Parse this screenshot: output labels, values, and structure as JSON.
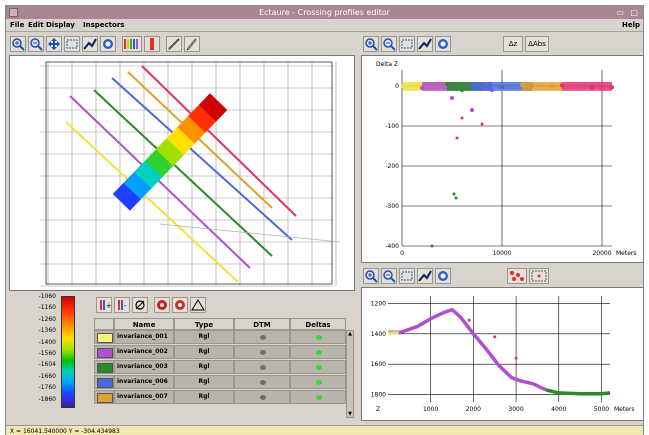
{
  "window": {
    "title": "Ectaure - Crossing profiles editor",
    "controls": "▭ □"
  },
  "menu": {
    "file": "File",
    "edit": "Edit",
    "display": "Display",
    "inspectors": "Inspectors",
    "help": "Help"
  },
  "toolbars": {
    "map": [
      "zoom-in-icon",
      "zoom-out-icon",
      "pan-icon",
      "select-rect-icon",
      "rubber-icon",
      "hand-icon",
      "profiles-icon",
      "bar-icon",
      "edit-pen-icon",
      "pencil-icon"
    ],
    "delta_labels": {
      "dz": "Δz",
      "dabs": "ΔAbs"
    },
    "profile": [
      "zoom-in-icon",
      "zoom-out-icon",
      "select-rect-icon",
      "rubber-icon",
      "hand-icon",
      "points-icon",
      "dash-rect-icon"
    ],
    "table": [
      "add-profile-icon",
      "remove-profile-icon",
      "reset-icon",
      "gear-red-icon",
      "gear-red2-icon",
      "triangle-icon"
    ]
  },
  "colorbar": {
    "labels": [
      "-1060",
      "-1160",
      "-1260",
      "-1360",
      "-1400",
      "-1560",
      "-1604",
      "-1660",
      "-1760",
      "-1860"
    ],
    "colors": [
      "#d00000",
      "#ff9000",
      "#ffe000",
      "#00c000",
      "#00d0c0",
      "#2040ff"
    ]
  },
  "table": {
    "headers": [
      "Name",
      "Type",
      "DTM",
      "Deltas"
    ],
    "rows": [
      {
        "name": "invariance_001",
        "type": "Rgl",
        "color": "#f7f07a"
      },
      {
        "name": "invariance_002",
        "type": "Rgl",
        "color": "#b050d0"
      },
      {
        "name": "invariance_003",
        "type": "Rgl",
        "color": "#2a8a2a"
      },
      {
        "name": "invariance_006",
        "type": "Rgl",
        "color": "#4a6ad8"
      },
      {
        "name": "invariance_007",
        "type": "Rgl",
        "color": "#e0a030"
      }
    ],
    "dtm_color": "#707070",
    "delta_color": "#40d040"
  },
  "delta_chart": {
    "ylabel": "Delta Z",
    "xlabel": "Meters",
    "yticks": [
      "0",
      "-100",
      "-200",
      "-300",
      "-400"
    ],
    "xticks": [
      "0",
      "10000",
      "20000"
    ]
  },
  "profile_chart": {
    "xlabel": "Meters",
    "ylabel": "Z",
    "yticks": [
      "1200",
      "1400",
      "1600",
      "1800"
    ],
    "xticks": [
      "1000",
      "2000",
      "3000",
      "4000",
      "5000"
    ]
  },
  "chart_data": [
    {
      "type": "scatter",
      "xlabel": "Meters",
      "ylabel": "Delta Z",
      "xlim": [
        0,
        21000
      ],
      "ylim": [
        -400,
        40
      ],
      "grid": true,
      "series": [
        {
          "color": "#f0e040",
          "x": [
            100,
            3000,
            6000
          ],
          "y": [
            0,
            2,
            -1
          ]
        },
        {
          "color": "#b050d0",
          "x": [
            2000,
            5000,
            7000,
            9000
          ],
          "y": [
            -5,
            -30,
            -60,
            -10
          ]
        },
        {
          "color": "#2a8a2a",
          "x": [
            4500,
            6000,
            8000
          ],
          "y": [
            5,
            -10,
            3
          ]
        },
        {
          "color": "#4a6ad8",
          "x": [
            7000,
            10000,
            13000
          ],
          "y": [
            2,
            -3,
            1
          ]
        },
        {
          "color": "#e0a030",
          "x": [
            12000,
            15000,
            16000
          ],
          "y": [
            3,
            0,
            -2
          ]
        },
        {
          "color": "#e03070",
          "x": [
            16000,
            19000,
            21000
          ],
          "y": [
            2,
            -5,
            -3
          ]
        }
      ]
    },
    {
      "type": "line",
      "xlabel": "Meters",
      "ylabel": "Z",
      "xlim": [
        0,
        5200
      ],
      "ylim": [
        1850,
        1150
      ],
      "grid": true,
      "series": [
        {
          "color": "#b050d0",
          "x": [
            0,
            300,
            700,
            1000,
            1300,
            1500,
            1700,
            2000,
            2300,
            2600,
            2900,
            3100,
            3400,
            3700
          ],
          "y": [
            1390,
            1390,
            1350,
            1300,
            1260,
            1240,
            1290,
            1400,
            1500,
            1610,
            1690,
            1710,
            1730,
            1770
          ]
        },
        {
          "color": "#2a8a2a",
          "x": [
            3700,
            4000,
            4500,
            5000,
            5200
          ],
          "y": [
            1770,
            1790,
            1795,
            1795,
            1790
          ]
        }
      ]
    }
  ],
  "status": "X = 16041.540000 Y = -304.434983"
}
